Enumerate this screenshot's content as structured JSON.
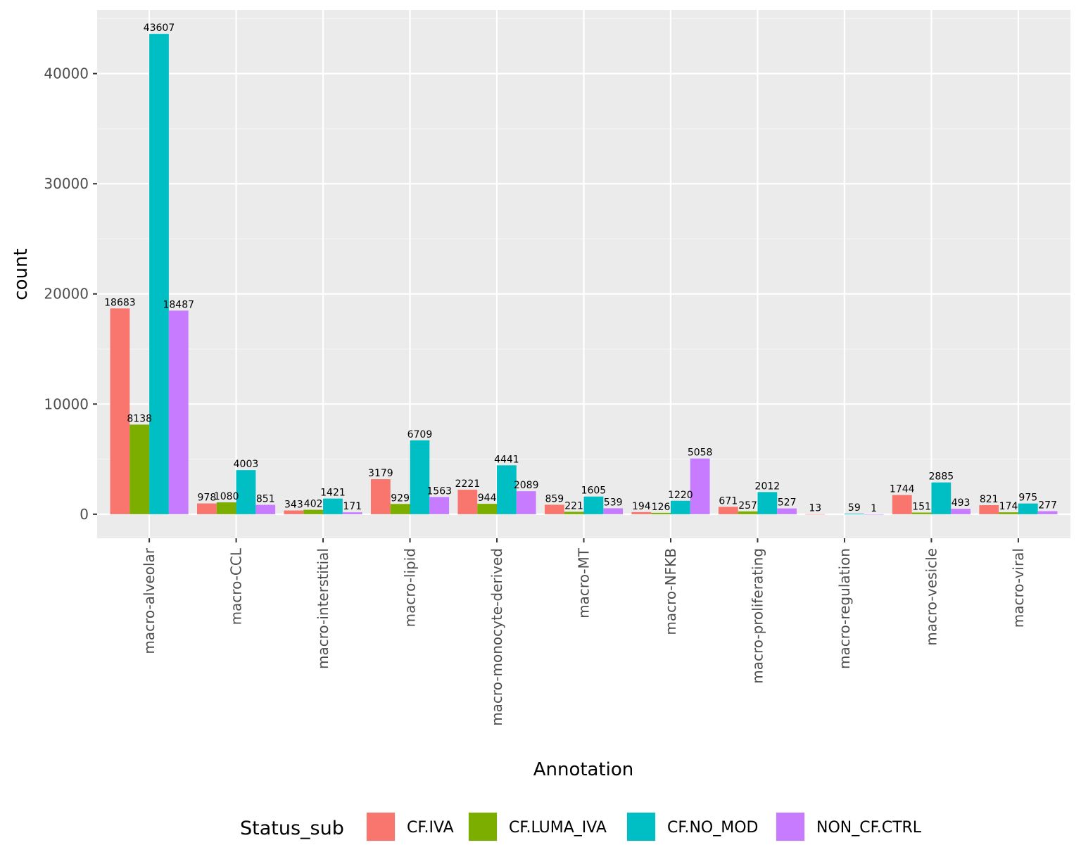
{
  "chart_data": {
    "type": "bar",
    "title": "",
    "xlabel": "Annotation",
    "ylabel": "count",
    "ylim": [
      -2180.35,
      45787.35
    ],
    "yticks": [
      0,
      10000,
      20000,
      30000,
      40000
    ],
    "ytick_labels": [
      "0",
      "10000",
      "20000",
      "30000",
      "40000"
    ],
    "categories": [
      "macro-alveolar",
      "macro-CCL",
      "macro-interstitial",
      "macro-lipid",
      "macro-monocyte-derived",
      "macro-MT",
      "macro-NFKB",
      "macro-proliferating",
      "macro-regulation",
      "macro-vesicle",
      "macro-viral"
    ],
    "legend": {
      "title": "Status_sub",
      "position": "bottom"
    },
    "series": [
      {
        "name": "CF.IVA",
        "color": "#F8766D",
        "values": [
          18683,
          978,
          343,
          3179,
          2221,
          859,
          194,
          671,
          13,
          1744,
          821
        ]
      },
      {
        "name": "CF.LUMA_IVA",
        "color": "#7CAE00",
        "values": [
          8138,
          1080,
          402,
          929,
          944,
          221,
          126,
          257,
          null,
          151,
          174
        ]
      },
      {
        "name": "CF.NO_MOD",
        "color": "#00BFC4",
        "values": [
          43607,
          4003,
          1421,
          6709,
          4441,
          1605,
          1220,
          2012,
          59,
          2885,
          975
        ]
      },
      {
        "name": "NON_CF.CTRL",
        "color": "#C77CFF",
        "values": [
          18487,
          851,
          171,
          1563,
          2089,
          539,
          5058,
          527,
          1,
          493,
          277
        ]
      }
    ],
    "theme": {
      "panel_bg": "#EBEBEB",
      "grid_major": "#FFFFFF",
      "grid_minor": "#F5F5F5"
    }
  }
}
